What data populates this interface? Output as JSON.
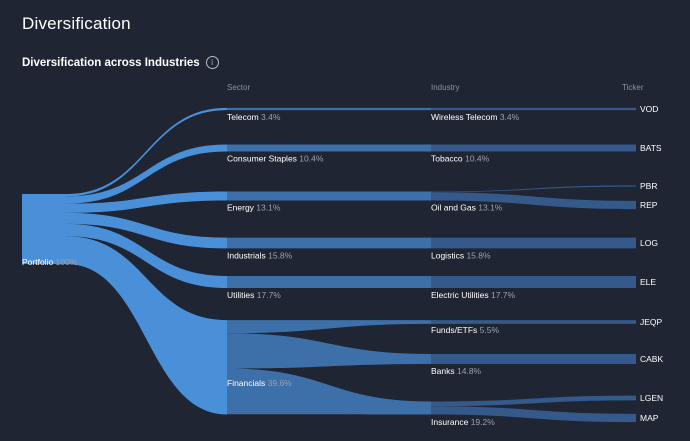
{
  "page": {
    "title": "Diversification"
  },
  "section": {
    "title": "Diversification across Industries",
    "info_icon": "info-icon"
  },
  "colors": {
    "background": "#1f2533",
    "flow": "#4a90d9",
    "flow_dim": "#3d6fa8",
    "ticker_flow": "#34598a"
  },
  "chart_data": {
    "type": "sankey",
    "columns": [
      "Sector",
      "Industry",
      "Ticker"
    ],
    "root": {
      "name": "Portfolio",
      "pct": "100%"
    },
    "sectors": [
      {
        "name": "Telecom",
        "pct": "3.4%",
        "value": 3.4,
        "industries": [
          {
            "name": "Wireless Telecom",
            "pct": "3.4%",
            "value": 3.4,
            "tickers": [
              {
                "name": "VOD",
                "value": 3.4
              }
            ]
          }
        ]
      },
      {
        "name": "Consumer Staples",
        "pct": "10.4%",
        "value": 10.4,
        "industries": [
          {
            "name": "Tobacco",
            "pct": "10.4%",
            "value": 10.4,
            "tickers": [
              {
                "name": "BATS",
                "value": 10.4
              }
            ]
          }
        ]
      },
      {
        "name": "Energy",
        "pct": "13.1%",
        "value": 13.1,
        "industries": [
          {
            "name": "Oil and Gas",
            "pct": "13.1%",
            "value": 13.1,
            "tickers": [
              {
                "name": "PBR",
                "value": 1.0
              },
              {
                "name": "REP",
                "value": 12.1
              }
            ]
          }
        ]
      },
      {
        "name": "Industrials",
        "pct": "15.8%",
        "value": 15.8,
        "industries": [
          {
            "name": "Logistics",
            "pct": "15.8%",
            "value": 15.8,
            "tickers": [
              {
                "name": "LOG",
                "value": 15.8
              }
            ]
          }
        ]
      },
      {
        "name": "Utilities",
        "pct": "17.7%",
        "value": 17.7,
        "industries": [
          {
            "name": "Electric Utilities",
            "pct": "17.7%",
            "value": 17.7,
            "tickers": [
              {
                "name": "ELE",
                "value": 17.7
              }
            ]
          }
        ]
      },
      {
        "name": "Financials",
        "pct": "39.6%",
        "value": 39.6,
        "industries": [
          {
            "name": "Funds/ETFs",
            "pct": "5.5%",
            "value": 5.5,
            "tickers": [
              {
                "name": "JEQP",
                "value": 5.5
              }
            ]
          },
          {
            "name": "Banks",
            "pct": "14.8%",
            "value": 14.8,
            "tickers": [
              {
                "name": "CABK",
                "value": 14.8
              }
            ]
          },
          {
            "name": "Insurance",
            "pct": "19.2%",
            "value": 19.2,
            "tickers": [
              {
                "name": "LGEN",
                "value": 7.0
              },
              {
                "name": "MAP",
                "value": 12.2
              }
            ]
          }
        ]
      }
    ]
  }
}
